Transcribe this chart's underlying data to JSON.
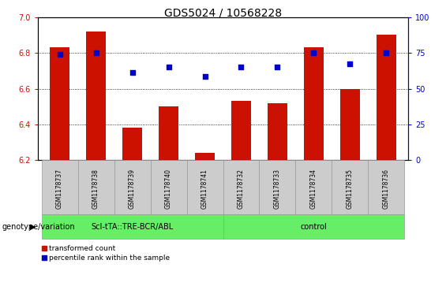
{
  "title": "GDS5024 / 10568228",
  "samples": [
    "GSM1178737",
    "GSM1178738",
    "GSM1178739",
    "GSM1178740",
    "GSM1178741",
    "GSM1178732",
    "GSM1178733",
    "GSM1178734",
    "GSM1178735",
    "GSM1178736"
  ],
  "transformed_count": [
    6.83,
    6.92,
    6.38,
    6.5,
    6.24,
    6.53,
    6.52,
    6.83,
    6.6,
    6.9
  ],
  "percentile_rank": [
    6.79,
    6.8,
    6.69,
    6.72,
    6.67,
    6.72,
    6.72,
    6.8,
    6.74,
    6.8
  ],
  "group1_label": "ScI-tTA::TRE-BCR/ABL",
  "group2_label": "control",
  "group1_count": 5,
  "group2_count": 5,
  "ylim_left": [
    6.2,
    7.0
  ],
  "ylim_right": [
    0,
    100
  ],
  "yticks_left": [
    6.2,
    6.4,
    6.6,
    6.8,
    7.0
  ],
  "yticks_right": [
    0,
    25,
    50,
    75,
    100
  ],
  "bar_color": "#cc1100",
  "dot_color": "#0000cc",
  "group_bg_color": "#66ee66",
  "sample_bg_color": "#cccccc",
  "legend_bar_label": "transformed count",
  "legend_dot_label": "percentile rank within the sample",
  "title_fontsize": 10,
  "tick_fontsize": 7,
  "sample_fontsize": 5.5,
  "group_fontsize": 7,
  "legend_fontsize": 6.5,
  "genotype_fontsize": 7
}
